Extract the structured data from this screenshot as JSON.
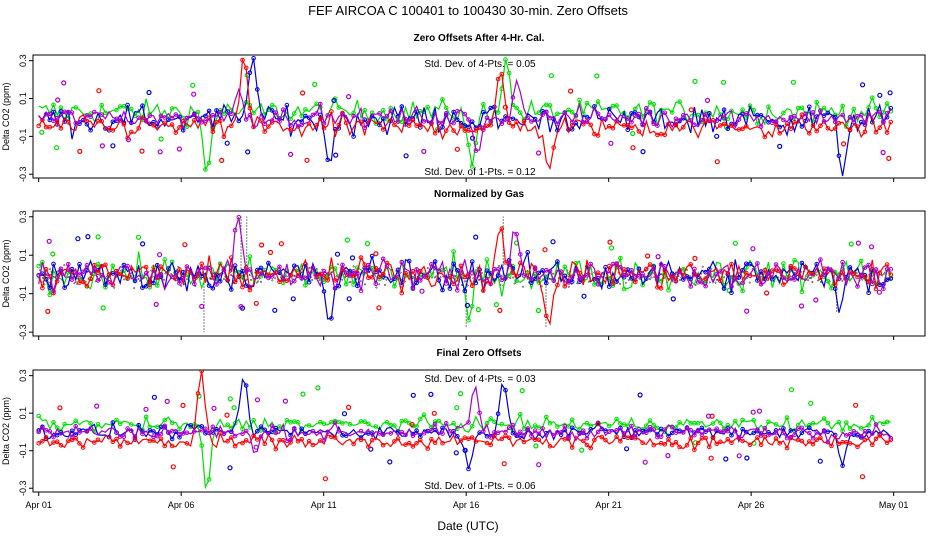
{
  "chart_data": {
    "type": "scatter",
    "title": "FEF   AIRCOA C   100401 to 100430   30-min. Zero Offsets",
    "xlabel": "Date (UTC)",
    "x_ticks": [
      {
        "day": 1,
        "label": "Apr 01"
      },
      {
        "day": 6,
        "label": "Apr 06"
      },
      {
        "day": 11,
        "label": "Apr 11"
      },
      {
        "day": 16,
        "label": "Apr 16"
      },
      {
        "day": 21,
        "label": "Apr 21"
      },
      {
        "day": 26,
        "label": "Apr 26"
      },
      {
        "day": 31,
        "label": "May 01"
      }
    ],
    "xlim": [
      0.8,
      32.1
    ],
    "series_colors": {
      "gas1": "#ff0000",
      "gas2": "#00dd00",
      "gas3": "#0000dd",
      "gas4": "#aa00cc",
      "normalized": "#000000"
    },
    "panels": [
      {
        "id": "raw",
        "title": "Zero Offsets After 4-Hr. Cal.",
        "ylabel": "Delta CO2 (ppm)",
        "ylim": [
          -0.32,
          0.33
        ],
        "yticks": [
          "0.3",
          "0.1",
          "-0.1",
          "-0.3"
        ],
        "ytick_values": [
          0.3,
          0.1,
          -0.1,
          -0.3
        ],
        "annotations": [
          "Std. Dev. of 4-Pts. = 0.05",
          "Std. Dev. of 1-Pts. = 0.12"
        ],
        "series": [
          {
            "name": "gas1",
            "offset": -0.05,
            "spread": 0.05,
            "spikes": [
              {
                "day": 8.2,
                "value": 0.33
              },
              {
                "day": 17.2,
                "value": 0.25
              },
              {
                "day": 18.9,
                "value": -0.28
              }
            ]
          },
          {
            "name": "gas2",
            "offset": 0.03,
            "spread": 0.05,
            "spikes": [
              {
                "day": 6.9,
                "value": -0.3
              },
              {
                "day": 16.2,
                "value": -0.26
              },
              {
                "day": 17.4,
                "value": 0.31
              }
            ]
          },
          {
            "name": "gas3",
            "offset": -0.01,
            "spread": 0.06,
            "spikes": [
              {
                "day": 8.5,
                "value": 0.33
              },
              {
                "day": 11.2,
                "value": -0.25
              },
              {
                "day": 29.2,
                "value": -0.31
              }
            ]
          },
          {
            "name": "gas4",
            "offset": 0.0,
            "spread": 0.04,
            "spikes": [
              {
                "day": 8.0,
                "value": 0.15
              },
              {
                "day": 17.8,
                "value": 0.2
              },
              {
                "day": 16.4,
                "value": -0.2
              }
            ]
          }
        ]
      },
      {
        "id": "normalized",
        "title": "Normalized by Gas",
        "ylabel": "Delta CO2 (ppm)",
        "ylim": [
          -0.32,
          0.33
        ],
        "yticks": [
          "0.3",
          "0.1",
          "-0.1",
          "-0.3"
        ],
        "ytick_values": [
          0.3,
          0.1,
          -0.1,
          -0.3
        ],
        "annotations": [],
        "series": [
          {
            "name": "gas1",
            "offset": 0.0,
            "spread": 0.06,
            "spikes": [
              {
                "day": 17.2,
                "value": 0.26
              },
              {
                "day": 18.9,
                "value": -0.27
              }
            ]
          },
          {
            "name": "gas2",
            "offset": 0.0,
            "spread": 0.07,
            "spikes": [
              {
                "day": 16.1,
                "value": -0.24
              }
            ]
          },
          {
            "name": "gas3",
            "offset": 0.0,
            "spread": 0.07,
            "spikes": [
              {
                "day": 11.2,
                "value": -0.26
              },
              {
                "day": 29.1,
                "value": -0.2
              }
            ]
          },
          {
            "name": "gas4",
            "offset": 0.0,
            "spread": 0.06,
            "spikes": [
              {
                "day": 8.0,
                "value": 0.3
              },
              {
                "day": 17.7,
                "value": 0.25
              }
            ]
          }
        ]
      },
      {
        "id": "final",
        "title": "Final Zero Offsets",
        "ylabel": "Delta CO2 (ppm)",
        "ylim": [
          -0.32,
          0.33
        ],
        "yticks": [
          "0.3",
          "0.1",
          "-0.1",
          "-0.3"
        ],
        "ytick_values": [
          0.3,
          0.1,
          -0.1,
          -0.3
        ],
        "annotations": [
          "Std. Dev. of 4-Pts. = 0.03",
          "Std. Dev. of 1-Pts. = 0.06"
        ],
        "series": [
          {
            "name": "gas1",
            "offset": -0.05,
            "spread": 0.03,
            "spikes": [
              {
                "day": 6.7,
                "value": 0.33
              }
            ]
          },
          {
            "name": "gas2",
            "offset": 0.04,
            "spread": 0.03,
            "spikes": [
              {
                "day": 6.9,
                "value": -0.32
              }
            ]
          },
          {
            "name": "gas3",
            "offset": 0.0,
            "spread": 0.03,
            "spikes": [
              {
                "day": 8.2,
                "value": 0.3
              },
              {
                "day": 16.1,
                "value": -0.2
              },
              {
                "day": 17.3,
                "value": 0.27
              },
              {
                "day": 29.2,
                "value": -0.18
              }
            ]
          },
          {
            "name": "gas4",
            "offset": 0.0,
            "spread": 0.03,
            "spikes": [
              {
                "day": 8.6,
                "value": -0.12
              },
              {
                "day": 16.3,
                "value": 0.25
              }
            ]
          }
        ]
      }
    ]
  }
}
